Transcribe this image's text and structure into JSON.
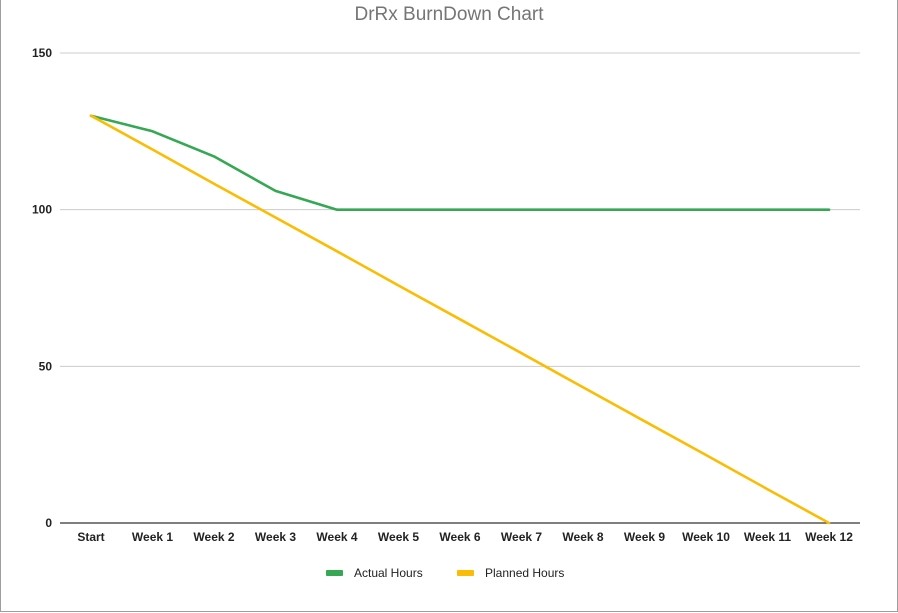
{
  "chart_data": {
    "type": "line",
    "title": "DrRx BurnDown Chart",
    "xlabel": "",
    "ylabel": "",
    "categories": [
      "Start",
      "Week 1",
      "Week 2",
      "Week 3",
      "Week 4",
      "Week 5",
      "Week 6",
      "Week 7",
      "Week 8",
      "Week 9",
      "Week 10",
      "Week 11",
      "Week 12"
    ],
    "series": [
      {
        "name": "Actual Hours",
        "color": "#34a853",
        "values": [
          130,
          125,
          117,
          106,
          100,
          100,
          100,
          100,
          100,
          100,
          100,
          100,
          100
        ]
      },
      {
        "name": "Planned Hours",
        "color": "#fbbc04",
        "values": [
          130,
          119.2,
          108.3,
          97.5,
          86.7,
          75.8,
          65,
          54.2,
          43.3,
          32.5,
          21.7,
          10.8,
          0
        ]
      }
    ],
    "ylim": [
      0,
      150
    ],
    "yticks": [
      0,
      50,
      100,
      150
    ],
    "grid": true,
    "legend_position": "bottom"
  }
}
